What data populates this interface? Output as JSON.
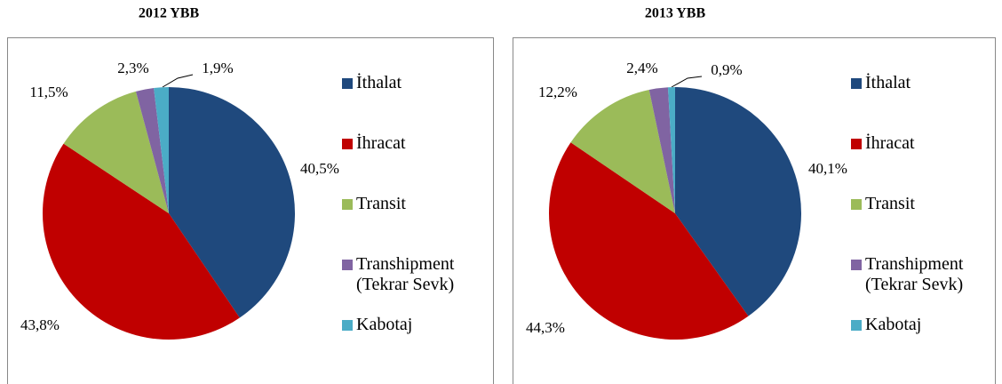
{
  "chart_data": [
    {
      "type": "pie",
      "title": "2012 YBB",
      "categories": [
        "İthalat",
        "İhracat",
        "Transit",
        "Transhipment (Tekrar Sevk)",
        "Kabotaj"
      ],
      "values": [
        40.5,
        43.8,
        11.5,
        2.3,
        1.9
      ],
      "value_labels": [
        "40,5%",
        "43,8%",
        "11,5%",
        "2,3%",
        "1,9%"
      ],
      "colors": [
        "#1f497d",
        "#c00000",
        "#9bbb59",
        "#8064a2",
        "#4bacc6"
      ],
      "legend": "right"
    },
    {
      "type": "pie",
      "title": "2013 YBB",
      "categories": [
        "İthalat",
        "İhracat",
        "Transit",
        "Transhipment (Tekrar Sevk)",
        "Kabotaj"
      ],
      "values": [
        40.1,
        44.3,
        12.2,
        2.4,
        0.9
      ],
      "value_labels": [
        "40,1%",
        "44,3%",
        "12,2%",
        "2,4%",
        "0,9%"
      ],
      "colors": [
        "#1f497d",
        "#c00000",
        "#9bbb59",
        "#8064a2",
        "#4bacc6"
      ],
      "legend": "right"
    }
  ]
}
